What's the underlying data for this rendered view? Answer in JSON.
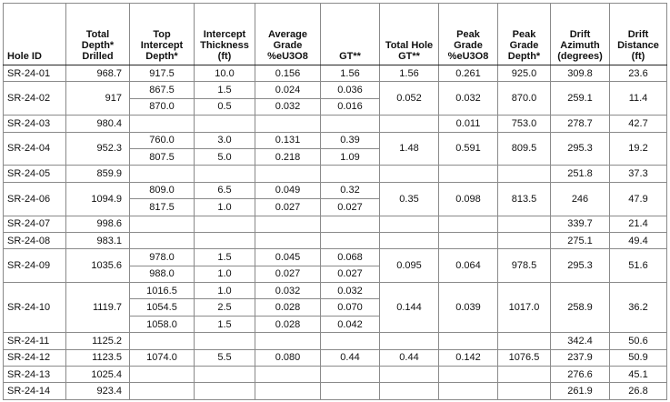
{
  "table": {
    "headers": [
      "Hole ID",
      "Total\nDepth*\nDrilled",
      "Top\nIntercept\nDepth*",
      "Intercept\nThickness\n(ft)",
      "Average\nGrade\n%eU3O8",
      "GT**",
      "Total Hole\nGT**",
      "Peak Grade\n%eU3O8",
      "Peak\nGrade\nDepth*",
      "Drift\nAzimuth\n(degrees)",
      "Drift\nDistance\n(ft)"
    ],
    "holes": [
      {
        "hole_id": "SR-24-01",
        "total_depth": "968.7",
        "intercepts": [
          [
            "917.5",
            "10.0",
            "0.156",
            "1.56"
          ]
        ],
        "total_gt": "1.56",
        "peak_grade": "0.261",
        "peak_depth": "925.0",
        "azimuth": "309.8",
        "distance": "23.6"
      },
      {
        "hole_id": "SR-24-02",
        "total_depth": "917",
        "intercepts": [
          [
            "867.5",
            "1.5",
            "0.024",
            "0.036"
          ],
          [
            "870.0",
            "0.5",
            "0.032",
            "0.016"
          ]
        ],
        "total_gt": "0.052",
        "peak_grade": "0.032",
        "peak_depth": "870.0",
        "azimuth": "259.1",
        "distance": "11.4"
      },
      {
        "hole_id": "SR-24-03",
        "total_depth": "980.4",
        "intercepts": [],
        "total_gt": null,
        "peak_grade": "0.011",
        "peak_depth": "753.0",
        "azimuth": "278.7",
        "distance": "42.7"
      },
      {
        "hole_id": "SR-24-04",
        "total_depth": "952.3",
        "intercepts": [
          [
            "760.0",
            "3.0",
            "0.131",
            "0.39"
          ],
          [
            "807.5",
            "5.0",
            "0.218",
            "1.09"
          ]
        ],
        "total_gt": "1.48",
        "peak_grade": "0.591",
        "peak_depth": "809.5",
        "azimuth": "295.3",
        "distance": "19.2"
      },
      {
        "hole_id": "SR-24-05",
        "total_depth": "859.9",
        "intercepts": [],
        "total_gt": null,
        "peak_grade": null,
        "peak_depth": null,
        "azimuth": "251.8",
        "distance": "37.3"
      },
      {
        "hole_id": "SR-24-06",
        "total_depth": "1094.9",
        "intercepts": [
          [
            "809.0",
            "6.5",
            "0.049",
            "0.32"
          ],
          [
            "817.5",
            "1.0",
            "0.027",
            "0.027"
          ]
        ],
        "total_gt": "0.35",
        "peak_grade": "0.098",
        "peak_depth": "813.5",
        "azimuth": "246",
        "distance": "47.9"
      },
      {
        "hole_id": "SR-24-07",
        "total_depth": "998.6",
        "intercepts": [],
        "total_gt": null,
        "peak_grade": null,
        "peak_depth": null,
        "azimuth": "339.7",
        "distance": "21.4"
      },
      {
        "hole_id": "SR-24-08",
        "total_depth": "983.1",
        "intercepts": [],
        "total_gt": null,
        "peak_grade": null,
        "peak_depth": null,
        "azimuth": "275.1",
        "distance": "49.4"
      },
      {
        "hole_id": "SR-24-09",
        "total_depth": "1035.6",
        "intercepts": [
          [
            "978.0",
            "1.5",
            "0.045",
            "0.068"
          ],
          [
            "988.0",
            "1.0",
            "0.027",
            "0.027"
          ]
        ],
        "total_gt": "0.095",
        "peak_grade": "0.064",
        "peak_depth": "978.5",
        "azimuth": "295.3",
        "distance": "51.6"
      },
      {
        "hole_id": "SR-24-10",
        "total_depth": "1119.7",
        "intercepts": [
          [
            "1016.5",
            "1.0",
            "0.032",
            "0.032"
          ],
          [
            "1054.5",
            "2.5",
            "0.028",
            "0.070"
          ],
          [
            "1058.0",
            "1.5",
            "0.028",
            "0.042"
          ]
        ],
        "total_gt": "0.144",
        "peak_grade": "0.039",
        "peak_depth": "1017.0",
        "azimuth": "258.9",
        "distance": "36.2"
      },
      {
        "hole_id": "SR-24-11",
        "total_depth": "1125.2",
        "intercepts": [],
        "total_gt": null,
        "peak_grade": null,
        "peak_depth": null,
        "azimuth": "342.4",
        "distance": "50.6"
      },
      {
        "hole_id": "SR-24-12",
        "total_depth": "1123.5",
        "intercepts": [
          [
            "1074.0",
            "5.5",
            "0.080",
            "0.44"
          ]
        ],
        "total_gt": "0.44",
        "peak_grade": "0.142",
        "peak_depth": "1076.5",
        "azimuth": "237.9",
        "distance": "50.9"
      },
      {
        "hole_id": "SR-24-13",
        "total_depth": "1025.4",
        "intercepts": [],
        "total_gt": null,
        "peak_grade": null,
        "peak_depth": null,
        "azimuth": "276.6",
        "distance": "45.1"
      },
      {
        "hole_id": "SR-24-14",
        "total_depth": "923.4",
        "intercepts": [],
        "total_gt": null,
        "peak_grade": null,
        "peak_depth": null,
        "azimuth": "261.9",
        "distance": "26.8"
      }
    ]
  }
}
